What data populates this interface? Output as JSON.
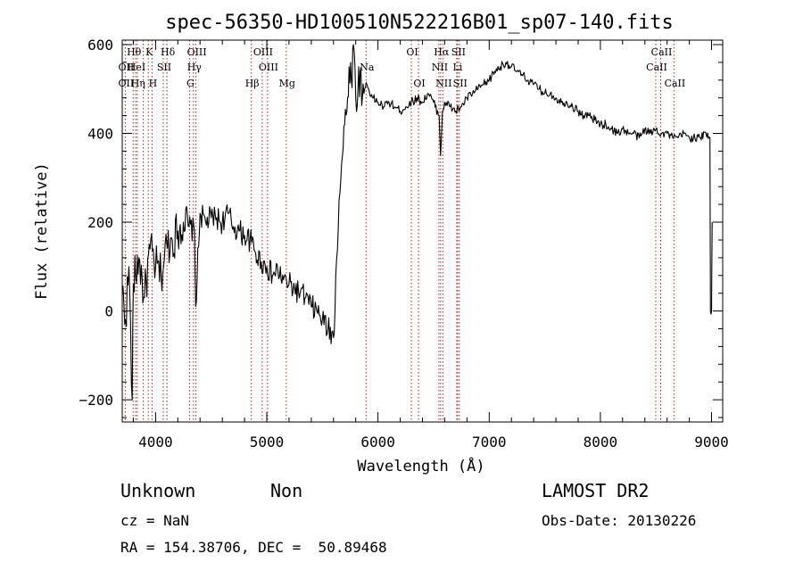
{
  "chart_data": {
    "type": "line",
    "title": "spec-56350-HD100510N522216B01_sp07-140.fits",
    "xlabel": "Wavelength (Å)",
    "ylabel": "Flux (relative)",
    "xlim": [
      3700,
      9100
    ],
    "ylim": [
      -250,
      610
    ],
    "x_ticks": [
      4000,
      5000,
      6000,
      7000,
      8000,
      9000
    ],
    "x_tick_labels": [
      "4000",
      "5000",
      "6000",
      "7000",
      "8000",
      "9000"
    ],
    "y_ticks": [
      -200,
      0,
      200,
      400,
      600
    ],
    "y_tick_labels": [
      "−200",
      "0",
      "200",
      "400",
      "600"
    ],
    "grid": false,
    "series": [
      {
        "x": [
          3700,
          3730,
          3760,
          3790,
          3800,
          3850,
          3900,
          3950,
          4000,
          4050,
          4100,
          4150,
          4200,
          4250,
          4300,
          4350,
          4360,
          4400,
          4450,
          4500,
          4550,
          4600,
          4650,
          4700,
          4750,
          4800,
          4850,
          4900,
          4950,
          5000,
          5050,
          5100,
          5150,
          5200,
          5250,
          5300,
          5350,
          5400,
          5450,
          5500,
          5550,
          5600,
          5620,
          5650,
          5680,
          5700,
          5720,
          5740,
          5760,
          5780,
          5800,
          5820,
          5840,
          5860,
          5880,
          5900,
          5950,
          6000,
          6050,
          6100,
          6150,
          6200,
          6250,
          6300,
          6350,
          6400,
          6450,
          6500,
          6550,
          6563,
          6580,
          6600,
          6650,
          6700,
          6750,
          6800,
          6850,
          6900,
          6950,
          7000,
          7050,
          7100,
          7150,
          7200,
          7250,
          7300,
          7350,
          7400,
          7450,
          7500,
          7550,
          7600,
          7650,
          7700,
          7750,
          7800,
          7850,
          7900,
          7950,
          8000,
          8050,
          8100,
          8150,
          8200,
          8250,
          8300,
          8350,
          8400,
          8450,
          8500,
          8550,
          8600,
          8650,
          8700,
          8750,
          8800,
          8850,
          8900,
          8950,
          8985,
          8990,
          9000,
          9005
        ],
        "y": [
          50,
          -20,
          100,
          -200,
          60,
          120,
          30,
          140,
          100,
          80,
          150,
          160,
          180,
          200,
          190,
          180,
          10,
          220,
          200,
          210,
          210,
          200,
          220,
          190,
          180,
          170,
          160,
          130,
          110,
          100,
          80,
          90,
          70,
          60,
          50,
          40,
          30,
          10,
          0,
          -20,
          -40,
          -60,
          80,
          250,
          350,
          420,
          450,
          550,
          520,
          600,
          480,
          500,
          540,
          480,
          500,
          510,
          480,
          470,
          460,
          470,
          460,
          450,
          460,
          470,
          480,
          470,
          490,
          470,
          440,
          350,
          450,
          470,
          460,
          450,
          460,
          480,
          490,
          500,
          510,
          520,
          540,
          550,
          560,
          550,
          540,
          530,
          520,
          510,
          500,
          490,
          490,
          480,
          470,
          470,
          460,
          450,
          440,
          440,
          430,
          420,
          420,
          410,
          400,
          410,
          400,
          400,
          390,
          410,
          400,
          410,
          400,
          400,
          390,
          390,
          400,
          390,
          390,
          390,
          400,
          390,
          0,
          0,
          200
        ]
      }
    ],
    "annotations": [
      {
        "label": "Hθ",
        "x": 3798,
        "row": 1
      },
      {
        "label": "K",
        "x": 3934,
        "row": 1
      },
      {
        "label": "Hδ",
        "x": 4102,
        "row": 1
      },
      {
        "label": "OIII",
        "x": 4363,
        "row": 1
      },
      {
        "label": "OIII",
        "x": 4959,
        "row": 1
      },
      {
        "label": "OI",
        "x": 6300,
        "row": 1
      },
      {
        "label": "Hα",
        "x": 6563,
        "row": 1
      },
      {
        "label": "SII",
        "x": 6716,
        "row": 1
      },
      {
        "label": "CaII",
        "x": 8542,
        "row": 1
      },
      {
        "label": "OII",
        "x": 3727,
        "row": 2
      },
      {
        "label": "HeI",
        "x": 3820,
        "row": 2
      },
      {
        "label": "SII",
        "x": 4069,
        "row": 2
      },
      {
        "label": "Hγ",
        "x": 4340,
        "row": 2
      },
      {
        "label": "OIII",
        "x": 5007,
        "row": 2
      },
      {
        "label": "Na",
        "x": 5893,
        "row": 2
      },
      {
        "label": "NII",
        "x": 6548,
        "row": 2
      },
      {
        "label": "Li",
        "x": 6708,
        "row": 2
      },
      {
        "label": "CaII",
        "x": 8498,
        "row": 2
      },
      {
        "label": "OII",
        "x": 3727,
        "row": 3
      },
      {
        "label": "Hη",
        "x": 3835,
        "row": 3
      },
      {
        "label": "H",
        "x": 3968,
        "row": 3
      },
      {
        "label": "G",
        "x": 4305,
        "row": 3
      },
      {
        "label": "Hβ",
        "x": 4861,
        "row": 3
      },
      {
        "label": "Mg",
        "x": 5175,
        "row": 3
      },
      {
        "label": "OI",
        "x": 6364,
        "row": 3
      },
      {
        "label": "NII",
        "x": 6583,
        "row": 3
      },
      {
        "label": "SII",
        "x": 6731,
        "row": 3
      },
      {
        "label": "CaII",
        "x": 8662,
        "row": 3
      }
    ],
    "line_markers": [
      3727,
      3798,
      3820,
      3835,
      3889,
      3934,
      3968,
      4069,
      4102,
      4305,
      4340,
      4363,
      4861,
      4959,
      5007,
      5175,
      5893,
      6300,
      6364,
      6548,
      6563,
      6583,
      6708,
      6716,
      6731,
      8498,
      8542,
      8662
    ]
  },
  "info": {
    "class_label": "Unknown",
    "subclass_label": "Non",
    "survey": "LAMOST DR2",
    "cz": "cz = NaN",
    "obs_date": "Obs-Date: 20130226",
    "coords": "RA = 154.38706, DEC =  50.89468"
  },
  "colors": {
    "spectrum": "#000000",
    "line_markers": "#b22222",
    "background": "#ffffff"
  }
}
